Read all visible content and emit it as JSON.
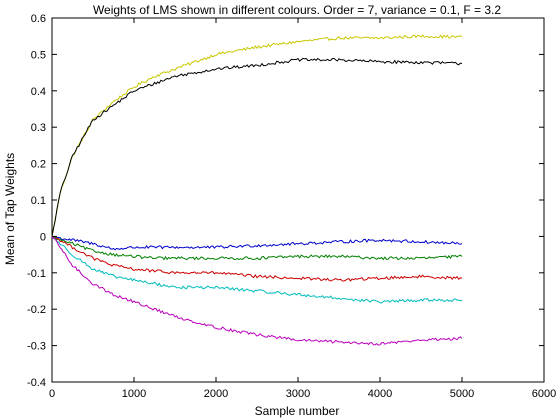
{
  "chart_data": {
    "type": "line",
    "title": "Weights of LMS shown in different colours. Order = 7, variance = 0.1, F = 3.2",
    "xlabel": "Sample number",
    "ylabel": "Mean of Tap Weights",
    "xlim": [
      0,
      6000
    ],
    "ylim": [
      -0.4,
      0.6
    ],
    "xticks": [
      0,
      1000,
      2000,
      3000,
      4000,
      5000,
      6000
    ],
    "yticks": [
      -0.4,
      -0.3,
      -0.2,
      -0.1,
      0,
      0.1,
      0.2,
      0.3,
      0.4,
      0.5,
      0.6
    ],
    "xtick_labels": [
      "0",
      "1000",
      "2000",
      "3000",
      "4000",
      "5000",
      "6000"
    ],
    "ytick_labels": [
      "-0.4",
      "-0.3",
      "-0.2",
      "-0.1",
      "0",
      "0.1",
      "0.2",
      "0.3",
      "0.4",
      "0.5",
      "0.6"
    ],
    "grid": false,
    "legend": "none",
    "x": [
      0,
      100,
      250,
      500,
      750,
      1000,
      1250,
      1500,
      2000,
      2500,
      3000,
      3500,
      4000,
      4500,
      5000
    ],
    "series": [
      {
        "color": "#c8c800",
        "values": [
          0.0,
          0.12,
          0.22,
          0.32,
          0.37,
          0.41,
          0.44,
          0.46,
          0.5,
          0.52,
          0.535,
          0.545,
          0.545,
          0.55,
          0.548
        ]
      },
      {
        "color": "#000000",
        "values": [
          0.0,
          0.12,
          0.22,
          0.32,
          0.36,
          0.4,
          0.42,
          0.44,
          0.46,
          0.47,
          0.485,
          0.485,
          0.48,
          0.478,
          0.475
        ]
      },
      {
        "color": "#0000cc",
        "values": [
          0.0,
          -0.005,
          -0.01,
          -0.02,
          -0.035,
          -0.03,
          -0.03,
          -0.03,
          -0.03,
          -0.025,
          -0.02,
          -0.015,
          -0.01,
          -0.015,
          -0.02
        ]
      },
      {
        "color": "#008000",
        "values": [
          0.0,
          -0.01,
          -0.02,
          -0.04,
          -0.05,
          -0.055,
          -0.06,
          -0.06,
          -0.06,
          -0.06,
          -0.055,
          -0.055,
          -0.06,
          -0.06,
          -0.055
        ]
      },
      {
        "color": "#cc0000",
        "values": [
          0.0,
          -0.01,
          -0.03,
          -0.06,
          -0.08,
          -0.09,
          -0.095,
          -0.1,
          -0.1,
          -0.11,
          -0.115,
          -0.12,
          -0.115,
          -0.11,
          -0.115
        ]
      },
      {
        "color": "#00bbbb",
        "values": [
          0.0,
          -0.02,
          -0.05,
          -0.09,
          -0.11,
          -0.12,
          -0.13,
          -0.14,
          -0.14,
          -0.15,
          -0.16,
          -0.17,
          -0.18,
          -0.175,
          -0.175
        ]
      },
      {
        "color": "#bb00bb",
        "values": [
          0.0,
          -0.03,
          -0.08,
          -0.13,
          -0.16,
          -0.18,
          -0.2,
          -0.22,
          -0.25,
          -0.27,
          -0.285,
          -0.29,
          -0.295,
          -0.285,
          -0.28
        ]
      }
    ]
  }
}
